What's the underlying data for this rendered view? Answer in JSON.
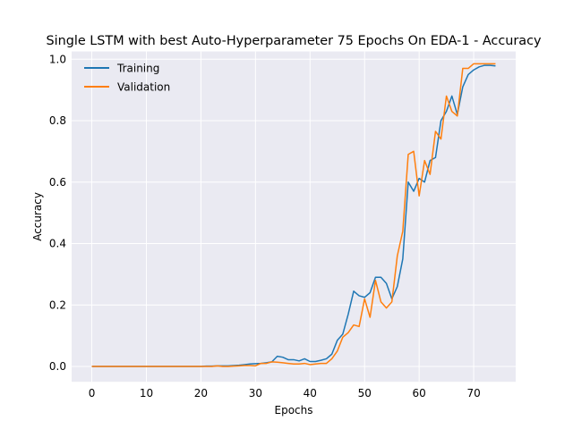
{
  "chart_data": {
    "type": "line",
    "title": "Single LSTM with best Auto-Hyperparameter 75 Epochs On EDA-1 - Accuracy",
    "xlabel": "Epochs",
    "ylabel": "Accuracy",
    "xlim": [
      -3.7,
      77.7
    ],
    "ylim": [
      -0.05,
      1.025
    ],
    "xticks": [
      0,
      10,
      20,
      30,
      40,
      50,
      60,
      70
    ],
    "yticks": [
      0.0,
      0.2,
      0.4,
      0.6,
      0.8,
      1.0
    ],
    "ytick_labels": [
      "0.0",
      "0.2",
      "0.4",
      "0.6",
      "0.8",
      "1.0"
    ],
    "grid": true,
    "legend_position": "upper-left",
    "colors": {
      "Training": "#1f77b4",
      "Validation": "#ff7f0e",
      "background": "#eaeaf2",
      "grid": "#ffffff"
    },
    "series": [
      {
        "name": "Training",
        "x": [
          0,
          1,
          2,
          3,
          4,
          5,
          6,
          7,
          8,
          9,
          10,
          11,
          12,
          13,
          14,
          15,
          16,
          17,
          18,
          19,
          20,
          21,
          22,
          23,
          24,
          25,
          26,
          27,
          28,
          29,
          30,
          31,
          32,
          33,
          34,
          35,
          36,
          37,
          38,
          39,
          40,
          41,
          42,
          43,
          44,
          45,
          46,
          47,
          48,
          49,
          50,
          51,
          52,
          53,
          54,
          55,
          56,
          57,
          58,
          59,
          60,
          61,
          62,
          63,
          64,
          65,
          66,
          67,
          68,
          69,
          70,
          71,
          72,
          73,
          74
        ],
        "values": [
          0.0,
          0.0,
          0.0,
          0.0,
          0.0,
          0.0,
          0.0,
          0.0,
          0.0,
          0.0,
          0.0,
          0.0,
          0.0,
          0.0,
          0.0,
          0.0,
          0.0,
          0.0,
          0.0,
          0.0,
          0.0,
          0.001,
          0.001,
          0.002,
          0.002,
          0.002,
          0.003,
          0.004,
          0.006,
          0.008,
          0.009,
          0.01,
          0.012,
          0.015,
          0.033,
          0.03,
          0.022,
          0.022,
          0.018,
          0.025,
          0.016,
          0.016,
          0.02,
          0.025,
          0.04,
          0.085,
          0.105,
          0.17,
          0.245,
          0.23,
          0.225,
          0.24,
          0.29,
          0.29,
          0.27,
          0.22,
          0.26,
          0.35,
          0.6,
          0.57,
          0.612,
          0.6,
          0.67,
          0.68,
          0.8,
          0.83,
          0.88,
          0.82,
          0.91,
          0.95,
          0.965,
          0.975,
          0.98,
          0.98,
          0.978
        ]
      },
      {
        "name": "Validation",
        "x": [
          0,
          1,
          2,
          3,
          4,
          5,
          6,
          7,
          8,
          9,
          10,
          11,
          12,
          13,
          14,
          15,
          16,
          17,
          18,
          19,
          20,
          21,
          22,
          23,
          24,
          25,
          26,
          27,
          28,
          29,
          30,
          31,
          32,
          33,
          34,
          35,
          36,
          37,
          38,
          39,
          40,
          41,
          42,
          43,
          44,
          45,
          46,
          47,
          48,
          49,
          50,
          51,
          52,
          53,
          54,
          55,
          56,
          57,
          58,
          59,
          60,
          61,
          62,
          63,
          64,
          65,
          66,
          67,
          68,
          69,
          70,
          71,
          72,
          73,
          74
        ],
        "values": [
          0.0,
          0.0,
          0.0,
          0.0,
          0.0,
          0.0,
          0.0,
          0.0,
          0.0,
          0.0,
          0.0,
          0.0,
          0.0,
          0.0,
          0.0,
          0.0,
          0.0,
          0.0,
          0.0,
          0.0,
          0.0,
          0.0,
          0.0,
          0.002,
          0.0,
          0.0,
          0.001,
          0.002,
          0.003,
          0.003,
          0.002,
          0.01,
          0.01,
          0.015,
          0.014,
          0.012,
          0.01,
          0.008,
          0.008,
          0.01,
          0.006,
          0.008,
          0.01,
          0.01,
          0.025,
          0.05,
          0.095,
          0.11,
          0.135,
          0.13,
          0.22,
          0.16,
          0.28,
          0.21,
          0.19,
          0.21,
          0.36,
          0.44,
          0.69,
          0.7,
          0.555,
          0.67,
          0.625,
          0.765,
          0.74,
          0.88,
          0.83,
          0.815,
          0.97,
          0.97,
          0.985,
          0.985,
          0.985,
          0.985,
          0.985
        ]
      }
    ]
  }
}
